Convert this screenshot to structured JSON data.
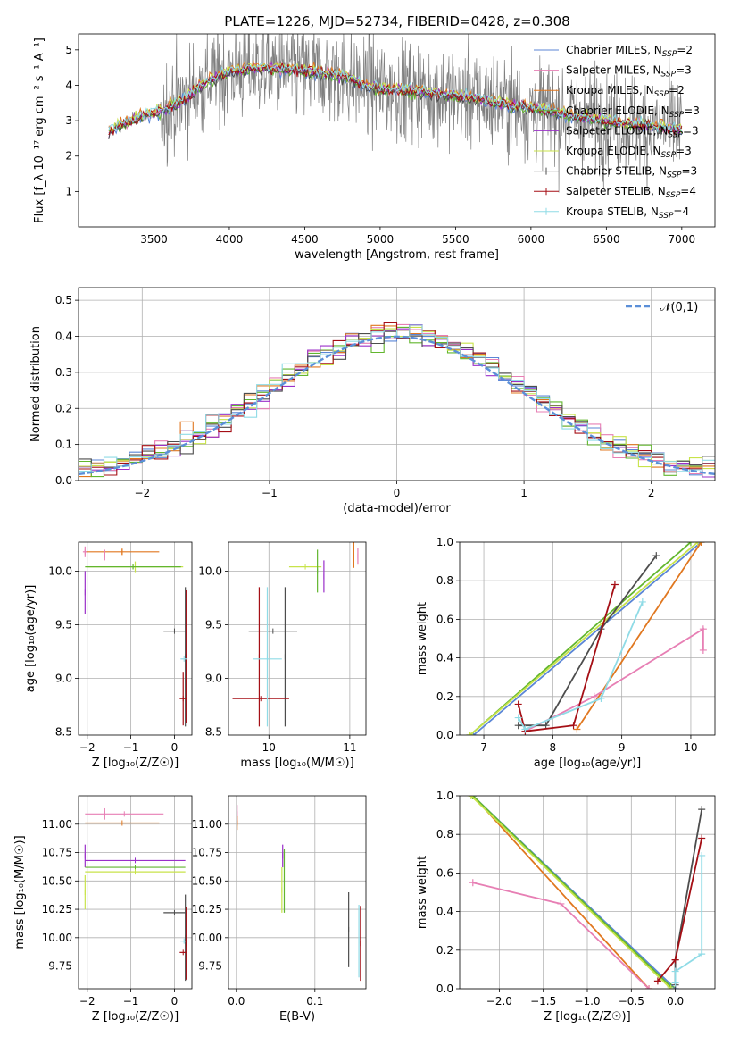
{
  "title": "PLATE=1226, MJD=52734, FIBERID=0428, z=0.308",
  "colors": {
    "Chabrier MILES": "#5b86d6",
    "Salpeter MILES": "#e77fb4",
    "Kroupa MILES": "#e0771f",
    "Chabrier ELODIE": "#62b62e",
    "Salpeter ELODIE": "#9b30c9",
    "Kroupa ELODIE": "#c8e34a",
    "Chabrier STELIB": "#4d4d4d",
    "Salpeter STELIB": "#a50f15",
    "Kroupa STELIB": "#8fdbe6",
    "data": "#7f7f7f",
    "normal": "#5b8fd8"
  },
  "chart_data": [
    {
      "id": "spectrum",
      "type": "line",
      "xlabel": "wavelength [Angstrom, rest frame]",
      "ylabel": "Flux [f_λ 10⁻¹⁷ erg cm⁻² s⁻¹ A⁻¹]",
      "xlim": [
        3000,
        7220
      ],
      "ylim": [
        0,
        5.45
      ],
      "xticks": [
        3500,
        4000,
        4500,
        5000,
        5500,
        6000,
        6500,
        7000
      ],
      "yticks": [
        1,
        2,
        3,
        4,
        5
      ],
      "legend_position": "top-right",
      "legend": [
        {
          "label": "Chabrier MILES, N",
          "sub": "SSP",
          "value": "=2",
          "series": "Chabrier MILES"
        },
        {
          "label": "Salpeter MILES, N",
          "sub": "SSP",
          "value": "=3",
          "series": "Salpeter MILES"
        },
        {
          "label": "Kroupa MILES, N",
          "sub": "SSP",
          "value": "=2",
          "series": "Kroupa MILES"
        },
        {
          "label": "Chabrier ELODIE, N",
          "sub": "SSP",
          "value": "=3",
          "series": "Chabrier ELODIE"
        },
        {
          "label": "Salpeter ELODIE, N",
          "sub": "SSP",
          "value": "=3",
          "series": "Salpeter ELODIE"
        },
        {
          "label": "Kroupa ELODIE, N",
          "sub": "SSP",
          "value": "=3",
          "series": "Kroupa ELODIE"
        },
        {
          "label": "Chabrier STELIB, N",
          "sub": "SSP",
          "value": "=3",
          "series": "Chabrier STELIB"
        },
        {
          "label": "Salpeter STELIB, N",
          "sub": "SSP",
          "value": "=4",
          "series": "Salpeter STELIB"
        },
        {
          "label": "Kroupa STELIB, N",
          "sub": "SSP",
          "value": "=4",
          "series": "Kroupa STELIB"
        }
      ],
      "continuum": [
        [
          3200,
          2.7
        ],
        [
          3300,
          2.9
        ],
        [
          3400,
          3.1
        ],
        [
          3500,
          3.2
        ],
        [
          3600,
          3.4
        ],
        [
          3700,
          3.6
        ],
        [
          3800,
          3.95
        ],
        [
          3900,
          4.2
        ],
        [
          4000,
          4.4
        ],
        [
          4100,
          4.45
        ],
        [
          4200,
          4.5
        ],
        [
          4300,
          4.5
        ],
        [
          4400,
          4.45
        ],
        [
          4500,
          4.4
        ],
        [
          4600,
          4.35
        ],
        [
          4700,
          4.3
        ],
        [
          4800,
          4.2
        ],
        [
          4900,
          4.0
        ],
        [
          5000,
          3.9
        ],
        [
          5200,
          3.85
        ],
        [
          5400,
          3.75
        ],
        [
          5600,
          3.65
        ],
        [
          5800,
          3.5
        ],
        [
          6000,
          3.35
        ],
        [
          6200,
          3.2
        ],
        [
          6400,
          3.05
        ],
        [
          6600,
          2.95
        ],
        [
          6800,
          2.85
        ],
        [
          7000,
          2.75
        ]
      ],
      "data_range_angstrom": [
        3200,
        7000
      ],
      "grid": false
    },
    {
      "id": "residuals",
      "type": "histogram",
      "xlabel": "(data-model)/error",
      "ylabel": "Normed distribution",
      "xlim": [
        -2.5,
        2.5
      ],
      "ylim": [
        0,
        0.535
      ],
      "xticks": [
        -2,
        -1,
        0,
        1,
        2
      ],
      "yticks": [
        0.0,
        0.1,
        0.2,
        0.3,
        0.4,
        0.5
      ],
      "bin_width": 0.1,
      "legend": "𝒩(0,1)",
      "legend_position": "top-right",
      "grid": true,
      "normal_pdf": {
        "mean": 0,
        "sd": 1
      }
    },
    {
      "id": "age-vs-Z",
      "type": "errorbar",
      "xlabel": "Z [log₁₀(Z/Z☉)]",
      "ylabel": "age  [log₁₀(age/yr)]",
      "xlim": [
        -2.2,
        0.4
      ],
      "ylim": [
        8.47,
        10.27
      ],
      "xticks": [
        -2,
        -1,
        0
      ],
      "yticks": [
        8.5,
        9.0,
        9.5,
        10.0
      ],
      "points": [
        {
          "series": "Kroupa MILES",
          "x": -1.2,
          "y": 10.18,
          "xerr": 0.85,
          "yerr": 0.03
        },
        {
          "series": "Salpeter MILES",
          "x": -2.05,
          "y": 10.18,
          "xerr": 0.05,
          "yerr": 0.05
        },
        {
          "series": "Salpeter MILES",
          "x": -1.6,
          "y": 10.15,
          "xerr": 0.0,
          "yerr": 0.05
        },
        {
          "series": "Kroupa ELODIE",
          "x": -0.9,
          "y": 10.04,
          "xerr": 1.1,
          "yerr": 0.05
        },
        {
          "series": "Salpeter ELODIE",
          "x": -2.05,
          "y": 9.8,
          "xerr": 0.0,
          "yerr": 0.2
        },
        {
          "series": "Chabrier ELODIE",
          "x": -0.95,
          "y": 10.04,
          "xerr": 1.1,
          "yerr": 0.02
        },
        {
          "series": "Chabrier STELIB",
          "x": 0.0,
          "y": 9.44,
          "xerr": 0.25,
          "yerr": 0.0
        },
        {
          "series": "Chabrier STELIB",
          "x": 0.25,
          "y": 9.2,
          "xerr": 0.0,
          "yerr": 0.65
        },
        {
          "series": "Salpeter STELIB",
          "x": 0.2,
          "y": 8.81,
          "xerr": 0.08,
          "yerr": 0.25
        },
        {
          "series": "Salpeter STELIB",
          "x": 0.27,
          "y": 9.2,
          "xerr": 0.0,
          "yerr": 0.62
        },
        {
          "series": "Kroupa STELIB",
          "x": 0.22,
          "y": 9.18,
          "xerr": 0.08,
          "yerr": 0.0
        }
      ]
    },
    {
      "id": "age-vs-mass",
      "type": "errorbar",
      "xlabel": "mass [log₁₀(M/M☉)]",
      "xlim": [
        9.5,
        11.2
      ],
      "ylim": [
        8.47,
        10.27
      ],
      "xticks": [
        10,
        11
      ],
      "yticks": [
        8.5,
        9.0,
        9.5,
        10.0
      ],
      "points": [
        {
          "series": "Kroupa MILES",
          "x": 11.05,
          "y": 10.18,
          "xerr": 0.0,
          "yerr": 0.15
        },
        {
          "series": "Salpeter MILES",
          "x": 11.1,
          "y": 10.14,
          "xerr": 0.0,
          "yerr": 0.08
        },
        {
          "series": "Kroupa ELODIE",
          "x": 10.45,
          "y": 10.04,
          "xerr": 0.2,
          "yerr": 0.0
        },
        {
          "series": "Chabrier ELODIE",
          "x": 10.6,
          "y": 10.0,
          "xerr": 0.0,
          "yerr": 0.2
        },
        {
          "series": "Salpeter ELODIE",
          "x": 10.68,
          "y": 9.95,
          "xerr": 0.0,
          "yerr": 0.15
        },
        {
          "series": "Chabrier STELIB",
          "x": 10.05,
          "y": 9.44,
          "xerr": 0.3,
          "yerr": 0.0
        },
        {
          "series": "Chabrier STELIB",
          "x": 10.2,
          "y": 9.2,
          "xerr": 0.0,
          "yerr": 0.65
        },
        {
          "series": "Salpeter STELIB",
          "x": 9.9,
          "y": 8.81,
          "xerr": 0.35,
          "yerr": 0.0
        },
        {
          "series": "Salpeter STELIB",
          "x": 9.88,
          "y": 9.2,
          "xerr": 0.0,
          "yerr": 0.65
        },
        {
          "series": "Kroupa STELIB",
          "x": 9.98,
          "y": 9.18,
          "xerr": 0.18,
          "yerr": 0.0
        },
        {
          "series": "Kroupa STELIB",
          "x": 9.98,
          "y": 9.2,
          "xerr": 0.0,
          "yerr": 0.65
        }
      ]
    },
    {
      "id": "weight-vs-age",
      "type": "line",
      "xlabel": "age  [log₁₀(age/yr)]",
      "ylabel": "mass weight",
      "xlim": [
        6.65,
        10.35
      ],
      "ylim": [
        0,
        1.0
      ],
      "xticks": [
        7,
        8,
        9,
        10
      ],
      "yticks": [
        0.0,
        0.2,
        0.4,
        0.6,
        0.8,
        1.0
      ],
      "series": [
        {
          "name": "Chabrier MILES",
          "points": [
            [
              6.85,
              0.0
            ],
            [
              10.15,
              1.0
            ]
          ]
        },
        {
          "name": "Kroupa MILES",
          "points": [
            [
              8.35,
              0.03
            ],
            [
              10.15,
              1.0
            ]
          ]
        },
        {
          "name": "Chabrier ELODIE",
          "points": [
            [
              6.8,
              0.0
            ],
            [
              10.0,
              1.0
            ]
          ]
        },
        {
          "name": "Kroupa ELODIE",
          "points": [
            [
              6.8,
              0.0
            ],
            [
              10.1,
              1.0
            ]
          ]
        },
        {
          "name": "Salpeter MILES",
          "points": [
            [
              7.6,
              0.02
            ],
            [
              8.6,
              0.2
            ],
            [
              10.18,
              0.55
            ],
            [
              10.18,
              0.44
            ]
          ]
        },
        {
          "name": "Chabrier STELIB",
          "points": [
            [
              7.5,
              0.05
            ],
            [
              7.9,
              0.05
            ],
            [
              8.7,
              0.55
            ],
            [
              9.5,
              0.93
            ]
          ]
        },
        {
          "name": "Salpeter STELIB",
          "points": [
            [
              7.5,
              0.16
            ],
            [
              7.6,
              0.02
            ],
            [
              8.3,
              0.05
            ],
            [
              8.9,
              0.78
            ]
          ]
        },
        {
          "name": "Kroupa STELIB",
          "points": [
            [
              7.5,
              0.09
            ],
            [
              7.6,
              0.03
            ],
            [
              8.7,
              0.19
            ],
            [
              9.3,
              0.69
            ]
          ]
        }
      ]
    },
    {
      "id": "mass-vs-Z",
      "type": "errorbar",
      "xlabel": "Z [log₁₀(Z/Z☉)]",
      "ylabel": "mass [log₁₀(M/M☉)]",
      "xlim": [
        -2.2,
        0.4
      ],
      "ylim": [
        9.55,
        11.25
      ],
      "xticks": [
        -2,
        -1,
        0
      ],
      "yticks": [
        9.75,
        10.0,
        10.25,
        10.5,
        10.75,
        11.0
      ],
      "points": [
        {
          "series": "Salpeter MILES",
          "x": -1.15,
          "y": 11.09,
          "xerr": 0.9,
          "yerr": 0.0
        },
        {
          "series": "Salpeter MILES",
          "x": -1.6,
          "y": 11.09,
          "xerr": 0.0,
          "yerr": 0.05
        },
        {
          "series": "Kroupa MILES",
          "x": -1.2,
          "y": 11.01,
          "xerr": 0.85,
          "yerr": 0.0
        },
        {
          "series": "Salpeter ELODIE",
          "x": -0.9,
          "y": 10.68,
          "xerr": 1.15,
          "yerr": 0.0
        },
        {
          "series": "Salpeter ELODIE",
          "x": -2.05,
          "y": 10.72,
          "xerr": 0.0,
          "yerr": 0.1
        },
        {
          "series": "Chabrier ELODIE",
          "x": -0.9,
          "y": 10.62,
          "xerr": 1.15,
          "yerr": 0.0
        },
        {
          "series": "Kroupa ELODIE",
          "x": -0.9,
          "y": 10.58,
          "xerr": 1.15,
          "yerr": 0.0
        },
        {
          "series": "Kroupa ELODIE",
          "x": -2.05,
          "y": 10.4,
          "xerr": 0.0,
          "yerr": 0.15
        },
        {
          "series": "Chabrier STELIB",
          "x": 0.0,
          "y": 10.22,
          "xerr": 0.25,
          "yerr": 0.0
        },
        {
          "series": "Chabrier STELIB",
          "x": 0.25,
          "y": 10.0,
          "xerr": 0.0,
          "yerr": 0.38
        },
        {
          "series": "Kroupa STELIB",
          "x": 0.22,
          "y": 9.97,
          "xerr": 0.08,
          "yerr": 0.0
        },
        {
          "series": "Salpeter STELIB",
          "x": 0.2,
          "y": 9.87,
          "xerr": 0.08,
          "yerr": 0.0
        },
        {
          "series": "Salpeter STELIB",
          "x": 0.27,
          "y": 9.95,
          "xerr": 0.0,
          "yerr": 0.32
        }
      ]
    },
    {
      "id": "mass-vs-ebv",
      "type": "errorbar",
      "xlabel": "E(B-V)",
      "xlim": [
        -0.01,
        0.165
      ],
      "ylim": [
        9.55,
        11.25
      ],
      "xticks": [
        0.0,
        0.1
      ],
      "yticks": [
        9.75,
        10.0,
        10.25,
        10.5,
        10.75,
        11.0
      ],
      "points": [
        {
          "series": "Salpeter MILES",
          "x": 0.001,
          "y": 11.09,
          "xerr": 0.0,
          "yerr": 0.08
        },
        {
          "series": "Kroupa MILES",
          "x": 0.001,
          "y": 11.01,
          "xerr": 0.0,
          "yerr": 0.06
        },
        {
          "series": "Salpeter ELODIE",
          "x": 0.059,
          "y": 10.72,
          "xerr": 0.0,
          "yerr": 0.1
        },
        {
          "series": "Chabrier ELODIE",
          "x": 0.061,
          "y": 10.5,
          "xerr": 0.0,
          "yerr": 0.28
        },
        {
          "series": "Kroupa ELODIE",
          "x": 0.058,
          "y": 10.42,
          "xerr": 0.0,
          "yerr": 0.2
        },
        {
          "series": "Chabrier STELIB",
          "x": 0.143,
          "y": 10.07,
          "xerr": 0.0,
          "yerr": 0.33
        },
        {
          "series": "Kroupa STELIB",
          "x": 0.156,
          "y": 9.97,
          "xerr": 0.0,
          "yerr": 0.32
        },
        {
          "series": "Salpeter STELIB",
          "x": 0.158,
          "y": 9.95,
          "xerr": 0.0,
          "yerr": 0.33
        }
      ]
    },
    {
      "id": "weight-vs-Z",
      "type": "line",
      "xlabel": "Z [log₁₀(Z/Z☉)]",
      "ylabel": "mass weight",
      "xlim": [
        -2.45,
        0.45
      ],
      "ylim": [
        0,
        1.0
      ],
      "xticks": [
        -2.0,
        -1.5,
        -1.0,
        -0.5,
        0.0
      ],
      "yticks": [
        0.0,
        0.2,
        0.4,
        0.6,
        0.8,
        1.0
      ],
      "series": [
        {
          "name": "Kroupa MILES",
          "points": [
            [
              -2.3,
              1.0
            ],
            [
              -0.3,
              0.0
            ]
          ]
        },
        {
          "name": "Chabrier MILES",
          "points": [
            [
              -2.3,
              1.0
            ],
            [
              0.0,
              0.0
            ]
          ]
        },
        {
          "name": "Chabrier ELODIE",
          "points": [
            [
              -2.3,
              1.0
            ],
            [
              -0.05,
              0.01
            ]
          ]
        },
        {
          "name": "Kroupa ELODIE",
          "points": [
            [
              -2.32,
              1.0
            ],
            [
              -0.05,
              0.0
            ]
          ]
        },
        {
          "name": "Salpeter MILES",
          "points": [
            [
              -2.3,
              0.55
            ],
            [
              -1.3,
              0.44
            ],
            [
              -0.3,
              0.0
            ]
          ]
        },
        {
          "name": "Chabrier STELIB",
          "points": [
            [
              0.0,
              0.02
            ],
            [
              0.0,
              0.15
            ],
            [
              0.3,
              0.93
            ]
          ]
        },
        {
          "name": "Salpeter STELIB",
          "points": [
            [
              -0.2,
              0.04
            ],
            [
              0.0,
              0.15
            ],
            [
              0.3,
              0.78
            ]
          ]
        },
        {
          "name": "Kroupa STELIB",
          "points": [
            [
              0.0,
              0.03
            ],
            [
              0.0,
              0.09
            ],
            [
              0.3,
              0.18
            ],
            [
              0.3,
              0.69
            ]
          ]
        }
      ]
    }
  ]
}
